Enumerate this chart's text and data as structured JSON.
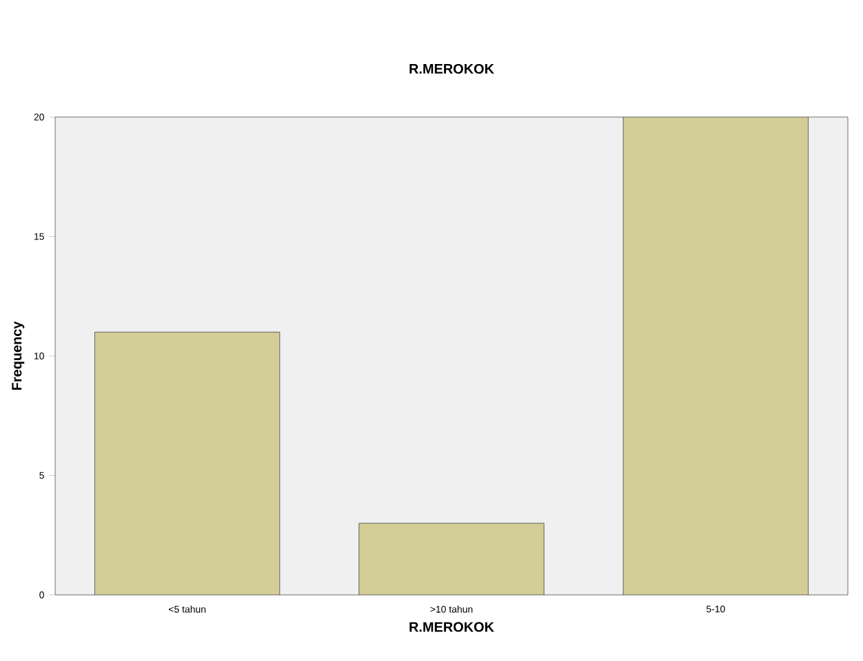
{
  "chart_data": {
    "type": "bar",
    "title": "R.MEROKOK",
    "xlabel": "R.MEROKOK",
    "ylabel": "Frequency",
    "categories": [
      "<5 tahun",
      ">10 tahun",
      "5-10"
    ],
    "values": [
      11,
      3,
      20
    ],
    "color": "#d3ce97",
    "ylim": [
      0,
      20
    ],
    "yticks": [
      0,
      5,
      10,
      15,
      20
    ]
  }
}
